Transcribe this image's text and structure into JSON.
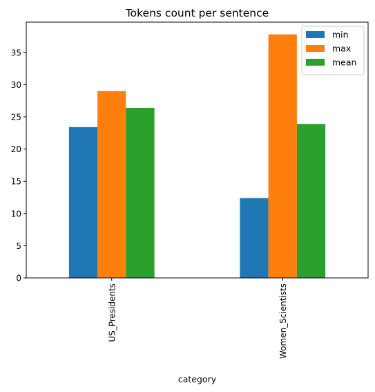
{
  "chart_data": {
    "type": "bar",
    "title": "Tokens count per sentence",
    "xlabel": "category",
    "ylabel": "",
    "categories": [
      "US_Presidents",
      "Women_Scientists"
    ],
    "series": [
      {
        "name": "min",
        "color": "#1f77b4",
        "values": [
          23.4,
          12.4
        ]
      },
      {
        "name": "max",
        "color": "#ff7f0e",
        "values": [
          29.0,
          37.8
        ]
      },
      {
        "name": "mean",
        "color": "#2ca02c",
        "values": [
          26.4,
          23.9
        ]
      }
    ],
    "ylim": [
      0,
      39.7
    ],
    "yticks": [
      0,
      5,
      10,
      15,
      20,
      25,
      30,
      35
    ],
    "grid": false,
    "legend_position": "top-right"
  }
}
